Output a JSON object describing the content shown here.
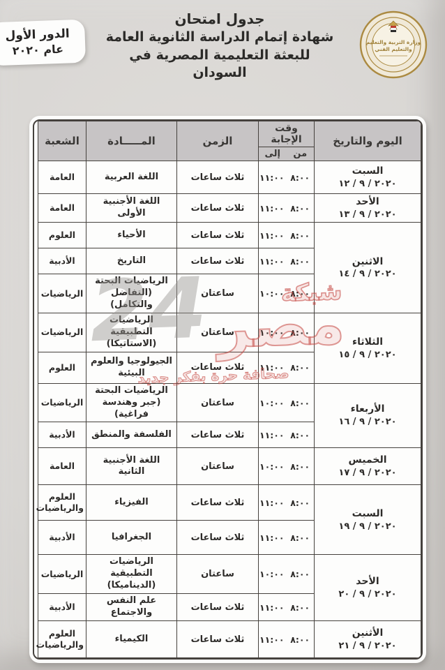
{
  "badge": {
    "line1": "الدور الأول",
    "line2": "عام ٢٠٢٠"
  },
  "title": {
    "line1": "جدول امتحان",
    "line2": "شهادة إتمام الدراسة الثانوية العامة",
    "line3": "للبعثة التعليمية المصرية في السودان"
  },
  "logo": {
    "ring_text": "MINISTRY OF EDUCATION AND TECHNICAL EDUCATION",
    "center_line1": "وزارة التربية والتعليم",
    "center_line2": "والتعليم الفني",
    "gold": "#ab8a41",
    "navy": "#3c4254"
  },
  "watermark": {
    "number": "24",
    "brand_top": "شبكة",
    "brand_main": "مصر",
    "tagline": "صحافة حرة بفكر جديد",
    "red": "#c9504b"
  },
  "table": {
    "headers": {
      "day": "اليوم والتاريخ",
      "answer_time": "وقت الإجابة",
      "from": "من",
      "to": "إلى",
      "duration": "الزمن",
      "subject": "المـــــادة",
      "branch": "الشعبة"
    },
    "header_bg": "#c7c4c5",
    "days": [
      {
        "day": "السبت",
        "date": "٢٠٢٠ / ٩ / ١٢",
        "rows": [
          {
            "branch": "العامة",
            "subject": "اللغة العربية",
            "duration": "ثلاث ساعات",
            "from": "٨:٠٠",
            "to": "١١:٠٠"
          }
        ]
      },
      {
        "day": "الأحد",
        "date": "٢٠٢٠ / ٩ / ١٣",
        "rows": [
          {
            "branch": "العامة",
            "subject": "اللغة الأجنبية الأولى",
            "duration": "ثلاث ساعات",
            "from": "٨:٠٠",
            "to": "١١:٠٠"
          }
        ]
      },
      {
        "day": "الاثنين",
        "date": "٢٠٢٠ / ٩ / ١٤",
        "rows": [
          {
            "branch": "العلوم",
            "subject": "الأحياء",
            "duration": "ثلاث ساعات",
            "from": "٨:٠٠",
            "to": "١١:٠٠"
          },
          {
            "branch": "الأدبية",
            "subject": "التاريخ",
            "duration": "ثلاث ساعات",
            "from": "٨:٠٠",
            "to": "١١:٠٠"
          },
          {
            "branch": "الرياضيات",
            "subject": "الرياضيات البحتة (التفاضل والتكامل)",
            "duration": "ساعتان",
            "from": "٨:٠٠",
            "to": "١٠:٠٠"
          }
        ]
      },
      {
        "day": "الثلاثاء",
        "date": "٢٠٢٠ / ٩ / ١٥",
        "rows": [
          {
            "branch": "الرياضيات",
            "subject": "الرياضيات التطبيقية (الاستاتيكا)",
            "duration": "ساعتان",
            "from": "٨:٠٠",
            "to": "١٠:٠٠"
          },
          {
            "branch": "العلوم",
            "subject": "الجيولوجيا والعلوم البيئية",
            "duration": "ثلاث ساعات",
            "from": "٨:٠٠",
            "to": "١١:٠٠"
          }
        ]
      },
      {
        "day": "الأربعاء",
        "date": "٢٠٢٠ / ٩ / ١٦",
        "rows": [
          {
            "branch": "الرياضيات",
            "subject": "الرياضيات البحتة (جبر وهندسة فراغية)",
            "duration": "ساعتان",
            "from": "٨:٠٠",
            "to": "١٠:٠٠"
          },
          {
            "branch": "الأدبية",
            "subject": "الفلسفة والمنطق",
            "duration": "ثلاث ساعات",
            "from": "٨:٠٠",
            "to": "١١:٠٠"
          }
        ]
      },
      {
        "day": "الخميس",
        "date": "٢٠٢٠ / ٩ / ١٧",
        "rows": [
          {
            "branch": "العامة",
            "subject": "اللغة الأجنبية الثانية",
            "duration": "ساعتان",
            "from": "٨:٠٠",
            "to": "١٠:٠٠"
          }
        ]
      },
      {
        "day": "السبت",
        "date": "٢٠٢٠ / ٩ / ١٩",
        "rows": [
          {
            "branch": "العلوم والرياضيات",
            "subject": "الفيزياء",
            "duration": "ثلاث ساعات",
            "from": "٨:٠٠",
            "to": "١١:٠٠"
          },
          {
            "branch": "الأدبية",
            "subject": "الجغرافيا",
            "duration": "ثلاث ساعات",
            "from": "٨:٠٠",
            "to": "١١:٠٠"
          }
        ]
      },
      {
        "day": "الأحد",
        "date": "٢٠٢٠ / ٩ / ٢٠",
        "rows": [
          {
            "branch": "الرياضيات",
            "subject": "الرياضيات التطبيقية (الديناميكا)",
            "duration": "ساعتان",
            "from": "٨:٠٠",
            "to": "١٠:٠٠"
          },
          {
            "branch": "الأدبية",
            "subject": "علم النفس والاجتماع",
            "duration": "ثلاث ساعات",
            "from": "٨:٠٠",
            "to": "١١:٠٠"
          }
        ]
      },
      {
        "day": "الأثنين",
        "date": "٢٠٢٠ / ٩ / ٢١",
        "rows": [
          {
            "branch": "العلوم والرياضيات",
            "subject": "الكيمياء",
            "duration": "ثلاث ساعات",
            "from": "٨:٠٠",
            "to": "١١:٠٠"
          }
        ]
      }
    ]
  }
}
